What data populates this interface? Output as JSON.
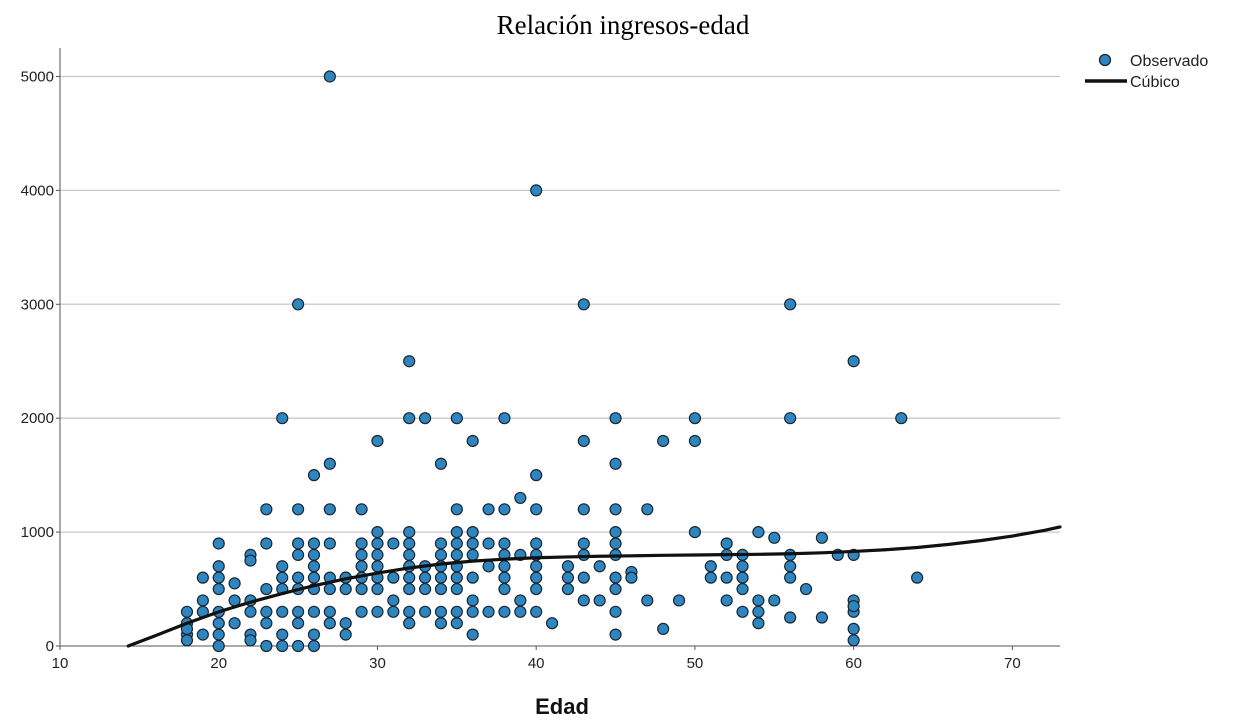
{
  "chart_data": {
    "type": "scatter",
    "title": "Relación ingresos-edad",
    "xlabel": "Edad",
    "ylabel": "",
    "xlim": [
      10,
      73
    ],
    "ylim": [
      0,
      5250
    ],
    "xticks": [
      10,
      20,
      30,
      40,
      50,
      60,
      70
    ],
    "yticks": [
      0,
      1000,
      2000,
      3000,
      4000,
      5000
    ],
    "grid": "horizontal",
    "legend_position": "top-right",
    "colors": {
      "points": "#2e86c1",
      "point_stroke": "#1b2631",
      "curve": "#111111",
      "grid": "#c8c8c8"
    },
    "series": [
      {
        "name": "Observado",
        "kind": "points",
        "points": [
          [
            27,
            5000
          ],
          [
            40,
            4000
          ],
          [
            25,
            3000
          ],
          [
            43,
            3000
          ],
          [
            56,
            3000
          ],
          [
            32,
            2500
          ],
          [
            60,
            2500
          ],
          [
            24,
            2000
          ],
          [
            32,
            2000
          ],
          [
            33,
            2000
          ],
          [
            35,
            2000
          ],
          [
            38,
            2000
          ],
          [
            45,
            2000
          ],
          [
            50,
            2000
          ],
          [
            56,
            2000
          ],
          [
            63,
            2000
          ],
          [
            30,
            1800
          ],
          [
            36,
            1800
          ],
          [
            43,
            1800
          ],
          [
            48,
            1800
          ],
          [
            50,
            1800
          ],
          [
            27,
            1600
          ],
          [
            34,
            1600
          ],
          [
            45,
            1600
          ],
          [
            26,
            1500
          ],
          [
            40,
            1500
          ],
          [
            39,
            1300
          ],
          [
            23,
            1200
          ],
          [
            25,
            1200
          ],
          [
            27,
            1200
          ],
          [
            29,
            1200
          ],
          [
            35,
            1200
          ],
          [
            37,
            1200
          ],
          [
            38,
            1200
          ],
          [
            40,
            1200
          ],
          [
            43,
            1200
          ],
          [
            45,
            1200
          ],
          [
            47,
            1200
          ],
          [
            32,
            1000
          ],
          [
            35,
            1000
          ],
          [
            36,
            1000
          ],
          [
            45,
            1000
          ],
          [
            50,
            1000
          ],
          [
            54,
            1000
          ],
          [
            30,
            1000
          ],
          [
            20,
            900
          ],
          [
            23,
            900
          ],
          [
            25,
            900
          ],
          [
            26,
            900
          ],
          [
            27,
            900
          ],
          [
            29,
            900
          ],
          [
            30,
            900
          ],
          [
            31,
            900
          ],
          [
            32,
            900
          ],
          [
            34,
            900
          ],
          [
            35,
            900
          ],
          [
            36,
            900
          ],
          [
            37,
            900
          ],
          [
            38,
            900
          ],
          [
            40,
            900
          ],
          [
            43,
            900
          ],
          [
            45,
            900
          ],
          [
            52,
            900
          ],
          [
            55,
            950
          ],
          [
            58,
            950
          ],
          [
            22,
            800
          ],
          [
            25,
            800
          ],
          [
            26,
            800
          ],
          [
            29,
            800
          ],
          [
            30,
            800
          ],
          [
            32,
            800
          ],
          [
            34,
            800
          ],
          [
            35,
            800
          ],
          [
            36,
            800
          ],
          [
            38,
            800
          ],
          [
            39,
            800
          ],
          [
            40,
            800
          ],
          [
            43,
            800
          ],
          [
            45,
            800
          ],
          [
            52,
            800
          ],
          [
            53,
            800
          ],
          [
            56,
            800
          ],
          [
            59,
            800
          ],
          [
            60,
            800
          ],
          [
            20,
            700
          ],
          [
            22,
            750
          ],
          [
            24,
            700
          ],
          [
            26,
            700
          ],
          [
            28,
            600
          ],
          [
            29,
            700
          ],
          [
            30,
            700
          ],
          [
            32,
            700
          ],
          [
            33,
            700
          ],
          [
            34,
            700
          ],
          [
            35,
            700
          ],
          [
            37,
            700
          ],
          [
            38,
            700
          ],
          [
            40,
            700
          ],
          [
            42,
            700
          ],
          [
            44,
            700
          ],
          [
            46,
            650
          ],
          [
            51,
            700
          ],
          [
            53,
            700
          ],
          [
            56,
            700
          ],
          [
            57,
            500
          ],
          [
            19,
            600
          ],
          [
            20,
            600
          ],
          [
            21,
            550
          ],
          [
            24,
            600
          ],
          [
            25,
            600
          ],
          [
            26,
            600
          ],
          [
            27,
            600
          ],
          [
            28,
            600
          ],
          [
            29,
            600
          ],
          [
            30,
            600
          ],
          [
            31,
            600
          ],
          [
            32,
            600
          ],
          [
            33,
            600
          ],
          [
            34,
            600
          ],
          [
            35,
            600
          ],
          [
            36,
            600
          ],
          [
            38,
            600
          ],
          [
            40,
            600
          ],
          [
            42,
            600
          ],
          [
            43,
            600
          ],
          [
            45,
            600
          ],
          [
            46,
            600
          ],
          [
            51,
            600
          ],
          [
            52,
            600
          ],
          [
            53,
            600
          ],
          [
            56,
            600
          ],
          [
            64,
            600
          ],
          [
            18,
            300
          ],
          [
            19,
            400
          ],
          [
            20,
            500
          ],
          [
            21,
            400
          ],
          [
            22,
            400
          ],
          [
            23,
            500
          ],
          [
            24,
            500
          ],
          [
            25,
            500
          ],
          [
            26,
            500
          ],
          [
            27,
            500
          ],
          [
            28,
            500
          ],
          [
            29,
            500
          ],
          [
            30,
            500
          ],
          [
            31,
            400
          ],
          [
            32,
            500
          ],
          [
            33,
            500
          ],
          [
            34,
            500
          ],
          [
            35,
            500
          ],
          [
            36,
            400
          ],
          [
            37,
            300
          ],
          [
            38,
            500
          ],
          [
            39,
            400
          ],
          [
            40,
            500
          ],
          [
            42,
            500
          ],
          [
            43,
            400
          ],
          [
            44,
            400
          ],
          [
            45,
            500
          ],
          [
            47,
            400
          ],
          [
            49,
            400
          ],
          [
            52,
            400
          ],
          [
            53,
            500
          ],
          [
            54,
            400
          ],
          [
            55,
            400
          ],
          [
            60,
            400
          ],
          [
            18,
            200
          ],
          [
            19,
            300
          ],
          [
            20,
            300
          ],
          [
            21,
            200
          ],
          [
            22,
            300
          ],
          [
            23,
            300
          ],
          [
            24,
            300
          ],
          [
            25,
            300
          ],
          [
            26,
            300
          ],
          [
            27,
            300
          ],
          [
            28,
            200
          ],
          [
            29,
            300
          ],
          [
            30,
            300
          ],
          [
            31,
            300
          ],
          [
            32,
            300
          ],
          [
            33,
            300
          ],
          [
            34,
            300
          ],
          [
            35,
            300
          ],
          [
            36,
            300
          ],
          [
            38,
            300
          ],
          [
            39,
            300
          ],
          [
            40,
            300
          ],
          [
            41,
            200
          ],
          [
            45,
            300
          ],
          [
            53,
            300
          ],
          [
            54,
            300
          ],
          [
            56,
            250
          ],
          [
            58,
            250
          ],
          [
            60,
            300
          ],
          [
            18,
            100
          ],
          [
            19,
            100
          ],
          [
            20,
            200
          ],
          [
            22,
            100
          ],
          [
            23,
            200
          ],
          [
            24,
            100
          ],
          [
            25,
            200
          ],
          [
            26,
            100
          ],
          [
            27,
            200
          ],
          [
            28,
            100
          ],
          [
            32,
            200
          ],
          [
            34,
            200
          ],
          [
            35,
            200
          ],
          [
            36,
            100
          ],
          [
            45,
            100
          ],
          [
            48,
            150
          ],
          [
            54,
            200
          ],
          [
            60,
            150
          ],
          [
            60,
            50
          ],
          [
            18,
            50
          ],
          [
            20,
            0
          ],
          [
            22,
            50
          ],
          [
            23,
            0
          ],
          [
            24,
            0
          ],
          [
            25,
            0
          ],
          [
            26,
            0
          ],
          [
            20,
            100
          ],
          [
            18,
            150
          ],
          [
            60,
            350
          ]
        ]
      },
      {
        "name": "Cúbico",
        "kind": "line",
        "points": [
          [
            14.3,
            0
          ],
          [
            16,
            90
          ],
          [
            18,
            200
          ],
          [
            20,
            300
          ],
          [
            22,
            385
          ],
          [
            24,
            460
          ],
          [
            26,
            530
          ],
          [
            28,
            590
          ],
          [
            30,
            640
          ],
          [
            32,
            685
          ],
          [
            34,
            720
          ],
          [
            36,
            745
          ],
          [
            38,
            762
          ],
          [
            40,
            775
          ],
          [
            42,
            782
          ],
          [
            44,
            788
          ],
          [
            46,
            792
          ],
          [
            48,
            796
          ],
          [
            50,
            799
          ],
          [
            52,
            802
          ],
          [
            54,
            805
          ],
          [
            56,
            810
          ],
          [
            58,
            818
          ],
          [
            60,
            830
          ],
          [
            62,
            845
          ],
          [
            64,
            865
          ],
          [
            66,
            892
          ],
          [
            68,
            925
          ],
          [
            70,
            965
          ],
          [
            72,
            1015
          ],
          [
            73,
            1045
          ]
        ]
      }
    ]
  }
}
